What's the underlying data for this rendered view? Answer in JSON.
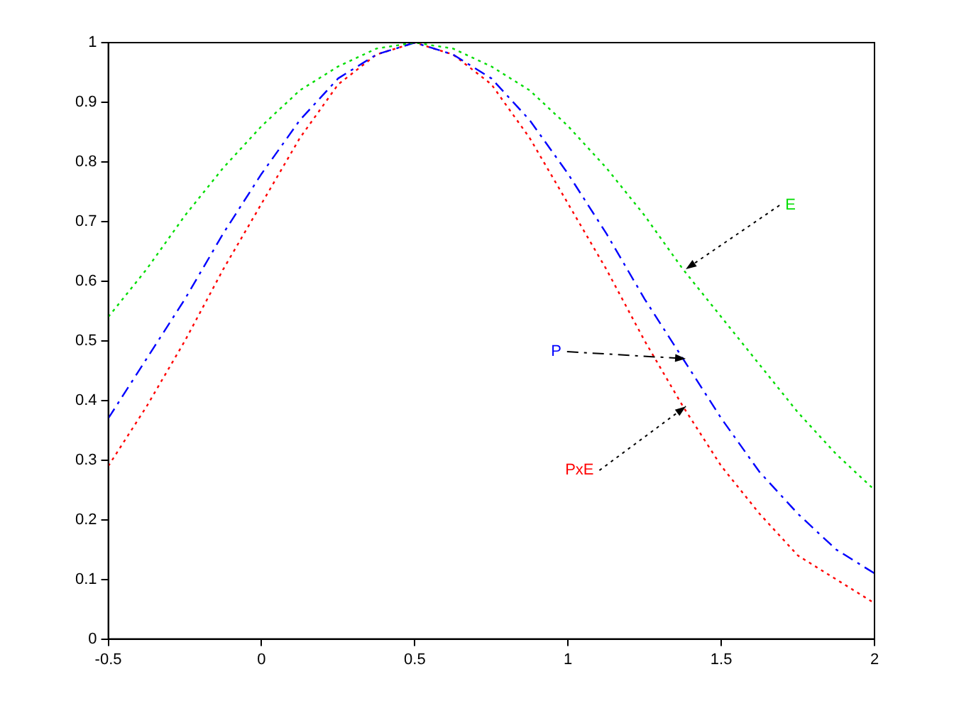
{
  "chart_data": {
    "type": "line",
    "x": [
      -0.5,
      -0.375,
      -0.25,
      -0.125,
      0,
      0.125,
      0.25,
      0.375,
      0.5,
      0.625,
      0.75,
      0.875,
      1,
      1.125,
      1.25,
      1.375,
      1.5,
      1.625,
      1.75,
      1.875,
      2
    ],
    "series": [
      {
        "name": "E",
        "color": "#00dd00",
        "line_style": "dotted",
        "values": [
          0.54,
          0.62,
          0.71,
          0.79,
          0.86,
          0.92,
          0.96,
          0.99,
          1,
          0.99,
          0.96,
          0.92,
          0.86,
          0.79,
          0.71,
          0.62,
          0.54,
          0.46,
          0.38,
          0.31,
          0.25
        ]
      },
      {
        "name": "P",
        "color": "#0000ff",
        "line_style": "dashed",
        "values": [
          0.37,
          0.47,
          0.57,
          0.68,
          0.78,
          0.87,
          0.94,
          0.98,
          1,
          0.98,
          0.94,
          0.87,
          0.78,
          0.68,
          0.57,
          0.47,
          0.37,
          0.28,
          0.21,
          0.15,
          0.11
        ]
      },
      {
        "name": "PxE",
        "color": "#ff0000",
        "line_style": "dotted",
        "values": [
          0.29,
          0.39,
          0.5,
          0.62,
          0.73,
          0.84,
          0.93,
          0.98,
          1,
          0.98,
          0.93,
          0.84,
          0.73,
          0.62,
          0.5,
          0.39,
          0.29,
          0.21,
          0.14,
          0.1,
          0.06
        ]
      }
    ],
    "xlim": [
      -0.5,
      2
    ],
    "xticks": [
      -0.5,
      0,
      0.5,
      1,
      1.5,
      2
    ],
    "ylim": [
      0,
      1
    ],
    "yticks": [
      0,
      0.1,
      0.2,
      0.3,
      0.4,
      0.5,
      0.6,
      0.7,
      0.8,
      0.9,
      1
    ],
    "grid": false,
    "legend": false,
    "marker": "none"
  }
}
